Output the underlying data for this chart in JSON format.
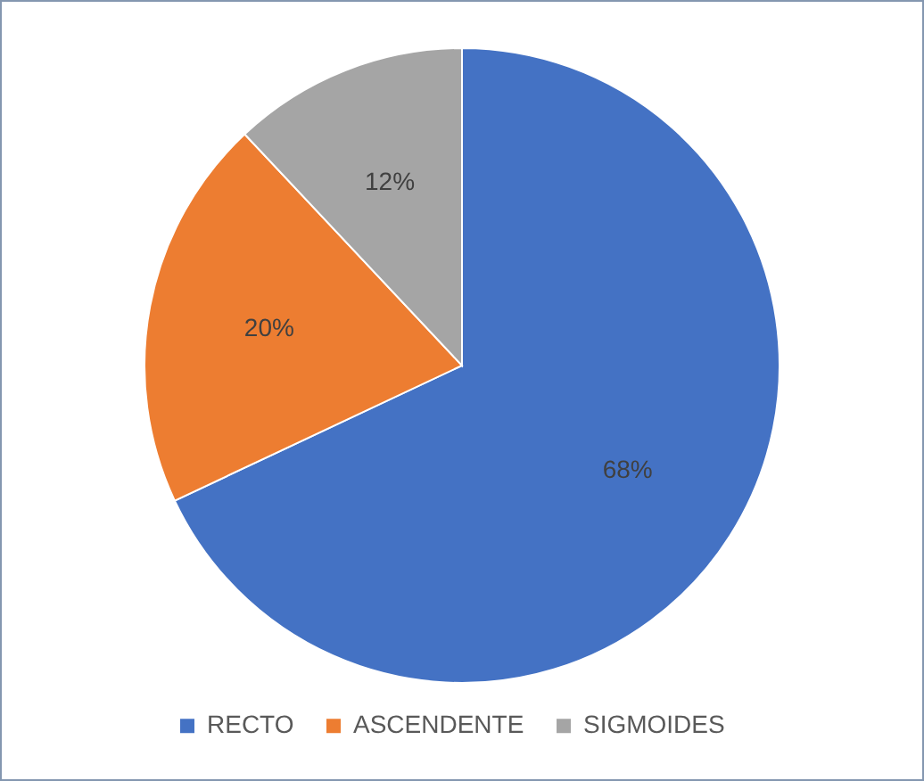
{
  "chart_data": {
    "type": "pie",
    "categories": [
      "RECTO",
      "ASCENDENTE",
      "SIGMOIDES"
    ],
    "values": [
      68,
      20,
      12
    ],
    "colors": [
      "#4472c4",
      "#ed7d31",
      "#a5a5a5"
    ],
    "value_labels": [
      "68%",
      "20%",
      "12%"
    ],
    "legend": "bottom"
  }
}
